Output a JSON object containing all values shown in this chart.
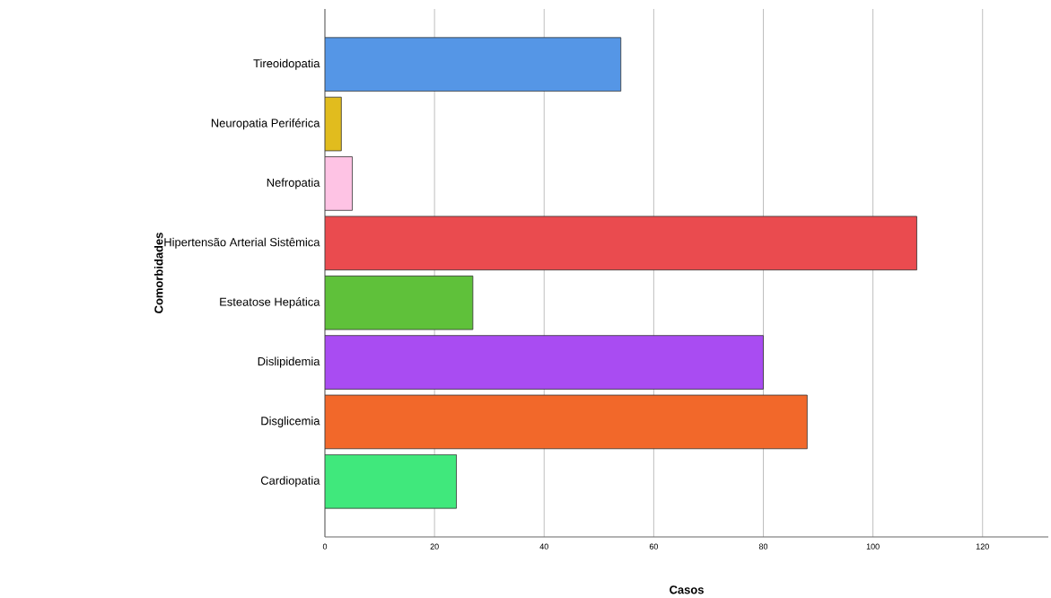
{
  "chart_data": {
    "type": "bar",
    "orientation": "horizontal",
    "xlabel": "Casos",
    "ylabel": "Comorbidades",
    "categories": [
      "Tireoidopatia",
      "Neuropatia Periférica",
      "Nefropatia",
      "Hipertensão Arterial Sistêmica",
      "Esteatose Hepática",
      "Dislipidemia",
      "Disglicemia",
      "Cardiopatia"
    ],
    "values": [
      54,
      3,
      5,
      108,
      27,
      80,
      88,
      24
    ],
    "colors": [
      "#5596e6",
      "#e1bc1e",
      "#fec3e4",
      "#ea4b4f",
      "#5fc13a",
      "#a94cf2",
      "#f2682a",
      "#40e87c"
    ],
    "xlim": [
      0,
      132
    ],
    "xticks": [
      0,
      20,
      40,
      60,
      80,
      100,
      120
    ],
    "grid": "x"
  }
}
